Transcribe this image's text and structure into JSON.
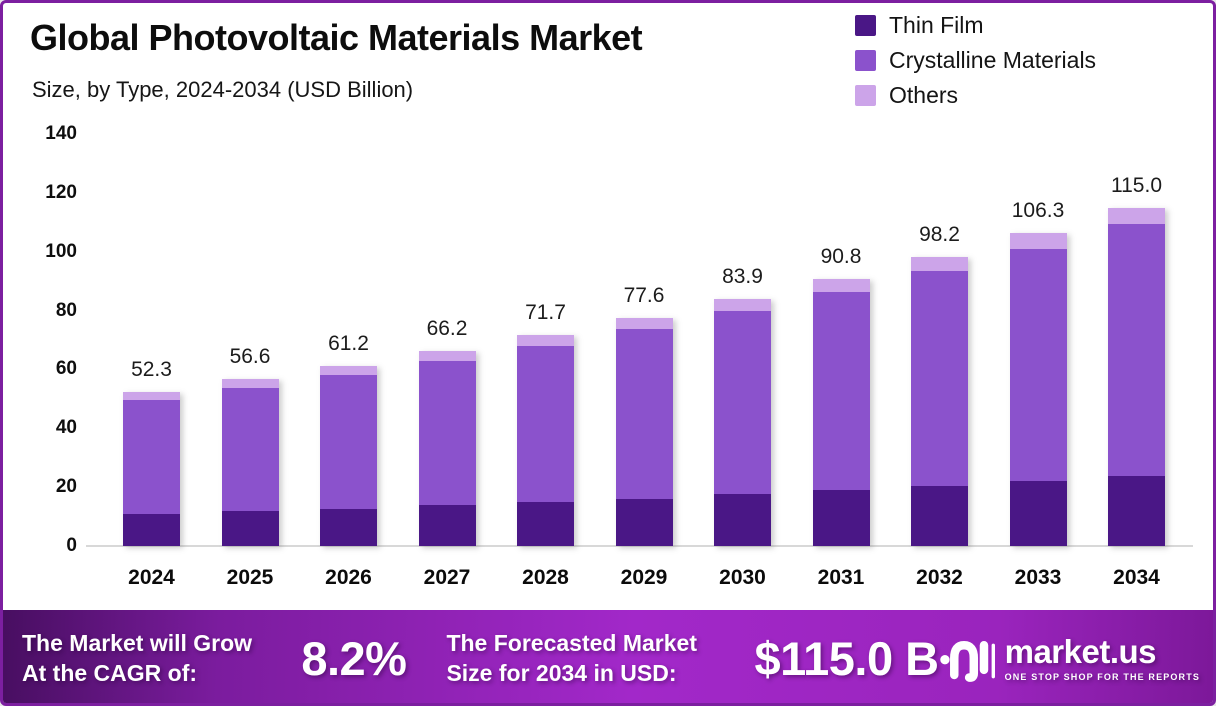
{
  "header": {
    "title": "Global Photovoltaic Materials Market",
    "subtitle": "Size, by Type, 2024-2034 (USD Billion)"
  },
  "legend": {
    "items": [
      {
        "label": "Thin Film",
        "color": "#4a1786"
      },
      {
        "label": "Crystalline Materials",
        "color": "#8b52cc"
      },
      {
        "label": "Others",
        "color": "#cca4e9"
      }
    ]
  },
  "chart_data": {
    "type": "bar",
    "stacked": true,
    "title": "Global Photovoltaic Materials Market Size, by Type, 2024-2034 (USD Billion)",
    "categories": [
      "2024",
      "2025",
      "2026",
      "2027",
      "2028",
      "2029",
      "2030",
      "2031",
      "2032",
      "2033",
      "2034"
    ],
    "totals": [
      52.3,
      56.6,
      61.2,
      66.2,
      71.7,
      77.6,
      83.9,
      90.8,
      98.2,
      106.3,
      115.0
    ],
    "total_labels": [
      "52.3",
      "56.6",
      "61.2",
      "66.2",
      "71.7",
      "77.6",
      "83.9",
      "90.8",
      "98.2",
      "106.3",
      "115.0"
    ],
    "series": [
      {
        "name": "Thin Film",
        "color": "#4a1786",
        "values": [
          10.9,
          11.8,
          12.7,
          13.8,
          14.9,
          16.1,
          17.5,
          18.9,
          20.4,
          22.1,
          23.9
        ]
      },
      {
        "name": "Crystalline Materials",
        "color": "#8b52cc",
        "values": [
          38.8,
          42.0,
          45.4,
          49.1,
          53.2,
          57.6,
          62.2,
          67.4,
          72.9,
          78.9,
          85.4
        ]
      },
      {
        "name": "Others",
        "color": "#cca4e9",
        "values": [
          2.6,
          2.8,
          3.1,
          3.3,
          3.6,
          3.9,
          4.2,
          4.5,
          4.9,
          5.3,
          5.7
        ]
      }
    ],
    "xlabel": "",
    "ylabel": "",
    "ylim": [
      0,
      140
    ],
    "yticks": [
      0,
      20,
      40,
      60,
      80,
      100,
      120,
      140
    ],
    "grid": false,
    "legend_position": "top-right"
  },
  "footer": {
    "cagr_label_line1": "The Market will Grow",
    "cagr_label_line2": "At the CAGR of:",
    "cagr_value": "8.2%",
    "forecast_label_line1": "The Forecasted Market",
    "forecast_label_line2": "Size for 2034 in USD:",
    "forecast_value": "$115.0 B",
    "brand": "market.us",
    "brand_tagline": "ONE STOP SHOP FOR THE REPORTS"
  },
  "colors": {
    "frame_border": "#7c1fa0",
    "axis_line": "#d8d8d8",
    "value_label": "#1c1c1c",
    "footer_gradient": [
      "#470e60",
      "#7b1c9e",
      "#a228c9",
      "#9a24bd",
      "#7c1899"
    ]
  }
}
